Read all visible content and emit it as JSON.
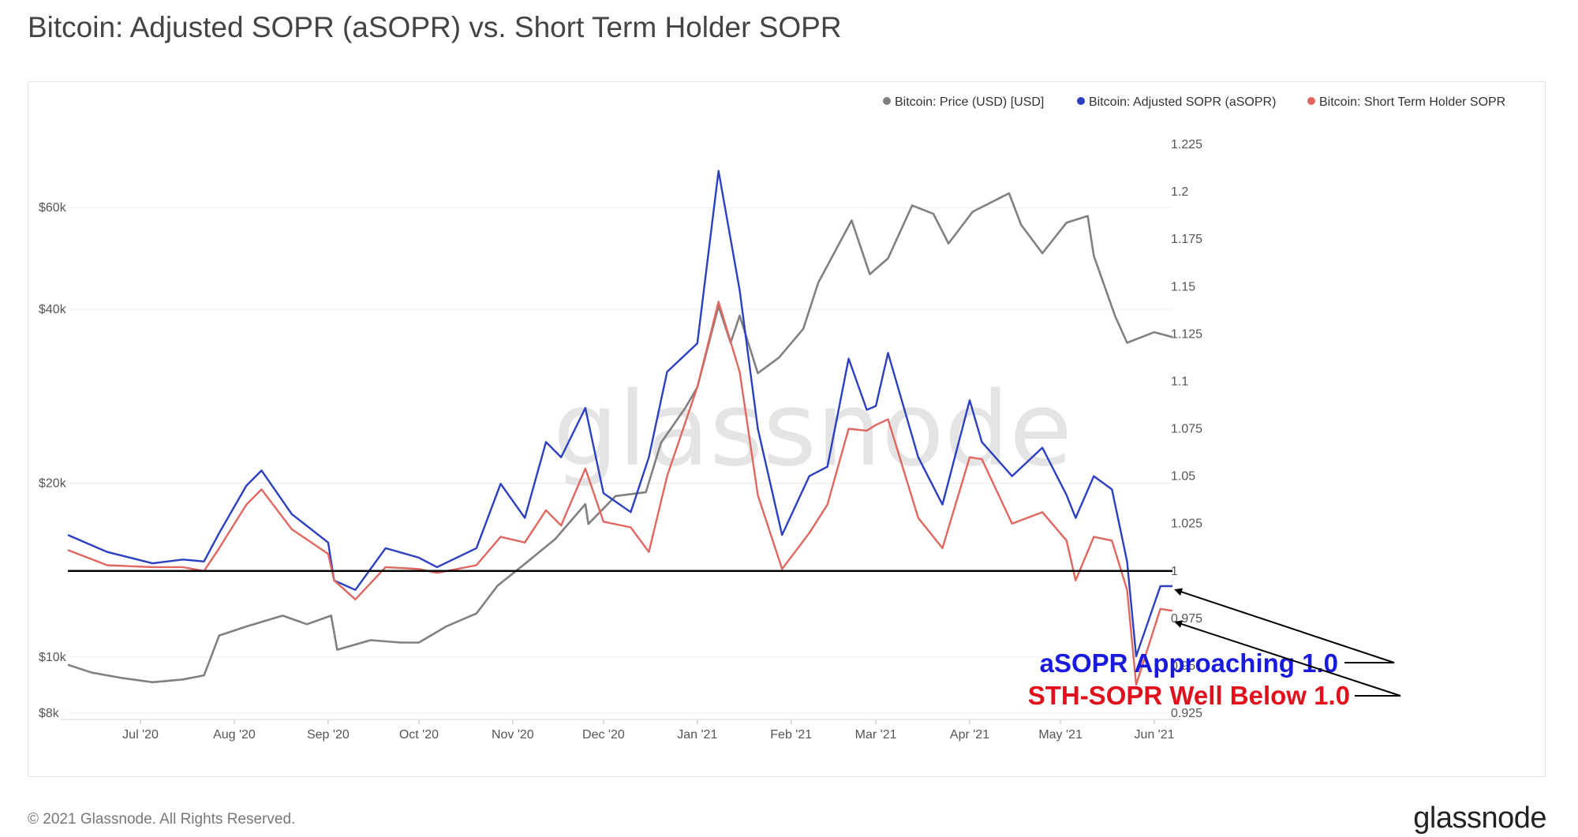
{
  "title": "Bitcoin: Adjusted SOPR (aSOPR) vs. Short Term Holder SOPR",
  "footer": {
    "copyright": "© 2021 Glassnode. All Rights Reserved.",
    "logo": "glassnode"
  },
  "watermark": "glassnode",
  "colors": {
    "price": "#808080",
    "asopr": "#2b3fbf",
    "sth": "#e0675f",
    "annot_blue": "#1a1adc",
    "annot_red": "#e0101c"
  },
  "chart_data": {
    "type": "line",
    "legend_position": "top-right",
    "grid": true,
    "legend": [
      {
        "name": "Bitcoin: Price (USD) [USD]",
        "color": "#808080"
      },
      {
        "name": "Bitcoin: Adjusted SOPR (aSOPR)",
        "color": "#2b3fbf"
      },
      {
        "name": "Bitcoin: Short Term Holder SOPR",
        "color": "#e0675f"
      }
    ],
    "x_ticks": [
      "Jul '20",
      "Aug '20",
      "Sep '20",
      "Oct '20",
      "Nov '20",
      "Dec '20",
      "Jan '21",
      "Feb '21",
      "Mar '21",
      "Apr '21",
      "May '21",
      "Jun '21"
    ],
    "x_range": [
      "2020-06-07",
      "2021-06-07"
    ],
    "y_left": {
      "scale": "log",
      "ticks": [
        "$8k",
        "$10k",
        "$20k",
        "$40k",
        "$60k"
      ],
      "tick_values": [
        8000,
        10000,
        20000,
        40000,
        60000
      ],
      "range": [
        8000,
        70000
      ]
    },
    "y_right": {
      "ticks": [
        "1.225",
        "1.2",
        "1.175",
        "1.15",
        "1.125",
        "1.1",
        "1.075",
        "1.05",
        "1.025",
        "1",
        "0.975",
        "0.95",
        "0.925"
      ],
      "range": [
        0.925,
        1.225
      ]
    },
    "reference_line": 1.0,
    "series": [
      {
        "name": "Bitcoin: Price (USD) [USD]",
        "axis": "left",
        "points": [
          [
            "2020-06-07",
            9700
          ],
          [
            "2020-06-15",
            9400
          ],
          [
            "2020-06-25",
            9200
          ],
          [
            "2020-07-05",
            9050
          ],
          [
            "2020-07-15",
            9150
          ],
          [
            "2020-07-22",
            9300
          ],
          [
            "2020-07-27",
            10900
          ],
          [
            "2020-08-05",
            11300
          ],
          [
            "2020-08-17",
            11800
          ],
          [
            "2020-08-25",
            11400
          ],
          [
            "2020-09-02",
            11800
          ],
          [
            "2020-09-04",
            10300
          ],
          [
            "2020-09-15",
            10700
          ],
          [
            "2020-09-25",
            10600
          ],
          [
            "2020-10-01",
            10600
          ],
          [
            "2020-10-10",
            11300
          ],
          [
            "2020-10-20",
            11900
          ],
          [
            "2020-10-27",
            13300
          ],
          [
            "2020-11-05",
            14500
          ],
          [
            "2020-11-15",
            16000
          ],
          [
            "2020-11-25",
            18400
          ],
          [
            "2020-11-26",
            17000
          ],
          [
            "2020-12-05",
            19000
          ],
          [
            "2020-12-15",
            19300
          ],
          [
            "2020-12-20",
            23500
          ],
          [
            "2020-12-28",
            27000
          ],
          [
            "2021-01-01",
            29300
          ],
          [
            "2021-01-08",
            40500
          ],
          [
            "2021-01-12",
            35000
          ],
          [
            "2021-01-15",
            39000
          ],
          [
            "2021-01-21",
            31000
          ],
          [
            "2021-01-28",
            33000
          ],
          [
            "2021-02-05",
            37000
          ],
          [
            "2021-02-10",
            44500
          ],
          [
            "2021-02-21",
            57000
          ],
          [
            "2021-02-27",
            46000
          ],
          [
            "2021-03-05",
            49000
          ],
          [
            "2021-03-13",
            60500
          ],
          [
            "2021-03-20",
            58500
          ],
          [
            "2021-03-25",
            52000
          ],
          [
            "2021-04-02",
            59000
          ],
          [
            "2021-04-14",
            63500
          ],
          [
            "2021-04-18",
            56000
          ],
          [
            "2021-04-25",
            50000
          ],
          [
            "2021-05-03",
            56500
          ],
          [
            "2021-05-10",
            58000
          ],
          [
            "2021-05-12",
            49500
          ],
          [
            "2021-05-19",
            39000
          ],
          [
            "2021-05-23",
            35000
          ],
          [
            "2021-06-01",
            36500
          ],
          [
            "2021-06-07",
            35800
          ]
        ]
      },
      {
        "name": "Bitcoin: Adjusted SOPR (aSOPR)",
        "axis": "right",
        "points": [
          [
            "2020-06-07",
            1.019
          ],
          [
            "2020-06-20",
            1.01
          ],
          [
            "2020-07-05",
            1.004
          ],
          [
            "2020-07-15",
            1.006
          ],
          [
            "2020-07-22",
            1.005
          ],
          [
            "2020-07-27",
            1.02
          ],
          [
            "2020-08-05",
            1.045
          ],
          [
            "2020-08-10",
            1.053
          ],
          [
            "2020-08-20",
            1.03
          ],
          [
            "2020-09-01",
            1.015
          ],
          [
            "2020-09-03",
            0.995
          ],
          [
            "2020-09-10",
            0.99
          ],
          [
            "2020-09-20",
            1.012
          ],
          [
            "2020-10-01",
            1.007
          ],
          [
            "2020-10-07",
            1.002
          ],
          [
            "2020-10-20",
            1.012
          ],
          [
            "2020-10-28",
            1.046
          ],
          [
            "2020-11-05",
            1.028
          ],
          [
            "2020-11-12",
            1.068
          ],
          [
            "2020-11-17",
            1.06
          ],
          [
            "2020-11-25",
            1.086
          ],
          [
            "2020-12-01",
            1.041
          ],
          [
            "2020-12-10",
            1.031
          ],
          [
            "2020-12-16",
            1.06
          ],
          [
            "2020-12-22",
            1.105
          ],
          [
            "2021-01-01",
            1.12
          ],
          [
            "2021-01-08",
            1.211
          ],
          [
            "2021-01-15",
            1.148
          ],
          [
            "2021-01-21",
            1.075
          ],
          [
            "2021-01-29",
            1.019
          ],
          [
            "2021-02-07",
            1.05
          ],
          [
            "2021-02-13",
            1.055
          ],
          [
            "2021-02-20",
            1.112
          ],
          [
            "2021-02-26",
            1.085
          ],
          [
            "2021-03-01",
            1.087
          ],
          [
            "2021-03-05",
            1.115
          ],
          [
            "2021-03-15",
            1.06
          ],
          [
            "2021-03-23",
            1.035
          ],
          [
            "2021-04-01",
            1.09
          ],
          [
            "2021-04-05",
            1.068
          ],
          [
            "2021-04-15",
            1.05
          ],
          [
            "2021-04-25",
            1.065
          ],
          [
            "2021-05-03",
            1.04
          ],
          [
            "2021-05-06",
            1.028
          ],
          [
            "2021-05-12",
            1.05
          ],
          [
            "2021-05-18",
            1.043
          ],
          [
            "2021-05-23",
            1.005
          ],
          [
            "2021-05-26",
            0.955
          ],
          [
            "2021-06-03",
            0.992
          ],
          [
            "2021-06-07",
            0.992
          ]
        ]
      },
      {
        "name": "Bitcoin: Short Term Holder SOPR",
        "axis": "right",
        "points": [
          [
            "2020-06-07",
            1.011
          ],
          [
            "2020-06-20",
            1.003
          ],
          [
            "2020-07-05",
            1.002
          ],
          [
            "2020-07-15",
            1.002
          ],
          [
            "2020-07-22",
            1.0
          ],
          [
            "2020-07-27",
            1.012
          ],
          [
            "2020-08-05",
            1.035
          ],
          [
            "2020-08-10",
            1.043
          ],
          [
            "2020-08-20",
            1.022
          ],
          [
            "2020-09-01",
            1.009
          ],
          [
            "2020-09-03",
            0.995
          ],
          [
            "2020-09-10",
            0.985
          ],
          [
            "2020-09-20",
            1.002
          ],
          [
            "2020-10-01",
            1.001
          ],
          [
            "2020-10-07",
            0.999
          ],
          [
            "2020-10-20",
            1.003
          ],
          [
            "2020-10-28",
            1.018
          ],
          [
            "2020-11-05",
            1.015
          ],
          [
            "2020-11-12",
            1.032
          ],
          [
            "2020-11-17",
            1.024
          ],
          [
            "2020-11-25",
            1.054
          ],
          [
            "2020-12-01",
            1.026
          ],
          [
            "2020-12-10",
            1.023
          ],
          [
            "2020-12-16",
            1.01
          ],
          [
            "2020-12-22",
            1.05
          ],
          [
            "2021-01-01",
            1.097
          ],
          [
            "2021-01-08",
            1.142
          ],
          [
            "2021-01-15",
            1.105
          ],
          [
            "2021-01-21",
            1.04
          ],
          [
            "2021-01-29",
            1.001
          ],
          [
            "2021-02-07",
            1.02
          ],
          [
            "2021-02-13",
            1.035
          ],
          [
            "2021-02-20",
            1.075
          ],
          [
            "2021-02-26",
            1.074
          ],
          [
            "2021-03-01",
            1.077
          ],
          [
            "2021-03-05",
            1.08
          ],
          [
            "2021-03-15",
            1.028
          ],
          [
            "2021-03-23",
            1.012
          ],
          [
            "2021-04-01",
            1.06
          ],
          [
            "2021-04-05",
            1.059
          ],
          [
            "2021-04-15",
            1.025
          ],
          [
            "2021-04-25",
            1.031
          ],
          [
            "2021-05-03",
            1.016
          ],
          [
            "2021-05-06",
            0.995
          ],
          [
            "2021-05-12",
            1.018
          ],
          [
            "2021-05-18",
            1.016
          ],
          [
            "2021-05-23",
            0.99
          ],
          [
            "2021-05-26",
            0.94
          ],
          [
            "2021-06-03",
            0.98
          ],
          [
            "2021-06-07",
            0.979
          ]
        ]
      }
    ],
    "annotations": [
      {
        "text": "aSOPR Approaching 1.0",
        "color": "#1a1adc",
        "target_date": "2021-06-07",
        "target_value": 0.99
      },
      {
        "text": "STH-SOPR Well Below 1.0",
        "color": "#e0101c",
        "target_date": "2021-06-07",
        "target_value": 0.973
      }
    ]
  }
}
